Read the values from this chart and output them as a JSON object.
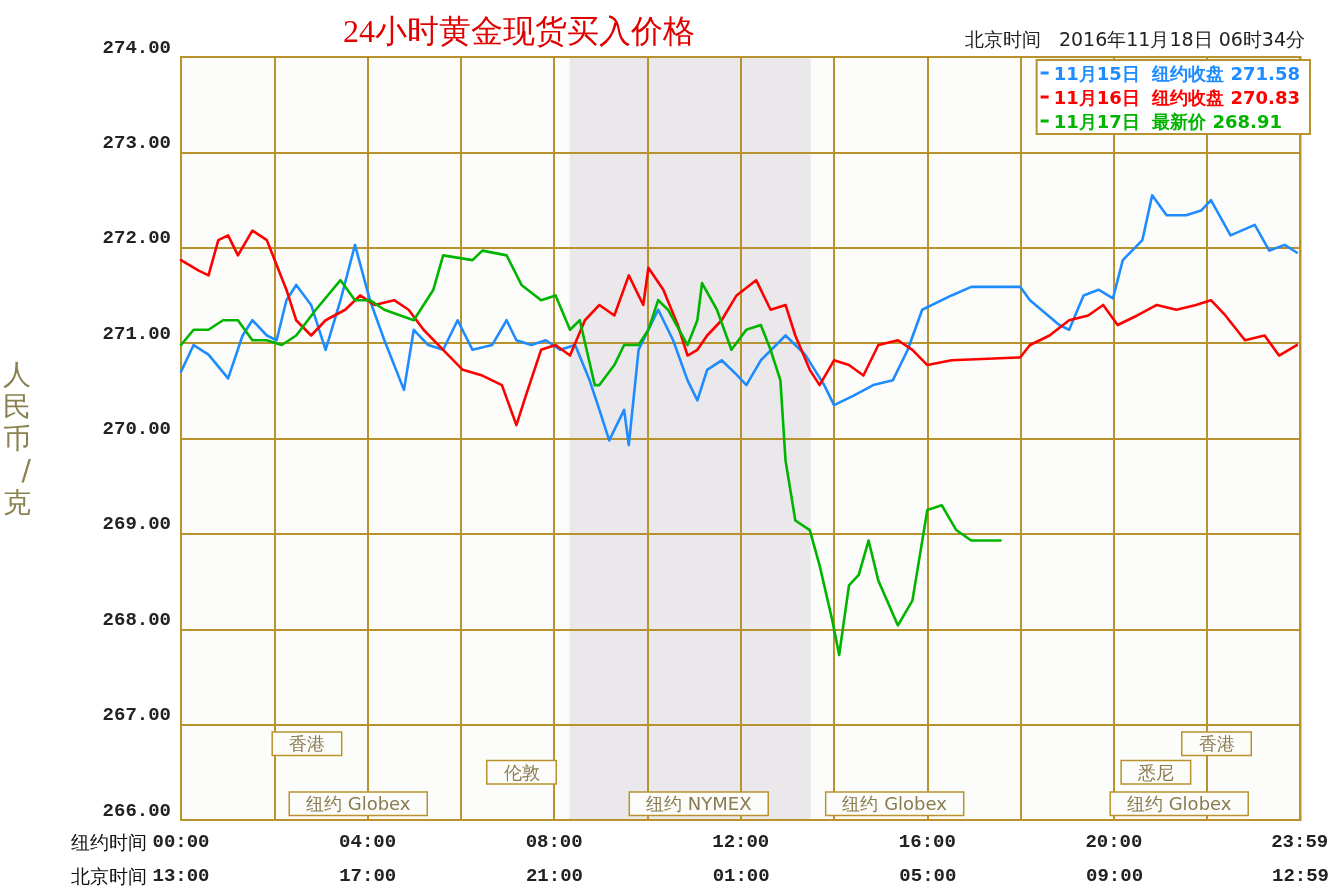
{
  "chart_data": {
    "type": "line",
    "title": "24小时黄金现货买入价格",
    "subtitle": "北京时间   2016年11月18日 06时34分",
    "xlabel": "纽约时间",
    "x2label": "北京时间",
    "ylabel": "人民币/克",
    "xlim": [
      0,
      24
    ],
    "xticks": [
      {
        "value": 0,
        "label": "00:00"
      },
      {
        "value": 2,
        "label": null
      },
      {
        "value": 4,
        "label": "04:00"
      },
      {
        "value": 6,
        "label": null
      },
      {
        "value": 8,
        "label": "08:00"
      },
      {
        "value": 10,
        "label": null
      },
      {
        "value": 12,
        "label": "12:00"
      },
      {
        "value": 14,
        "label": null
      },
      {
        "value": 16,
        "label": "16:00"
      },
      {
        "value": 18,
        "label": null
      },
      {
        "value": 20,
        "label": "20:00"
      },
      {
        "value": 22,
        "label": null
      },
      {
        "value": 23.983,
        "label": "23:59"
      }
    ],
    "x2lim": [
      "2016-11-17T13:00",
      "2016-11-18T12:59"
    ],
    "x2ticks": [
      {
        "value": "2016-11-17T13:00",
        "label": "13:00"
      },
      {
        "value": "2016-11-17T17:00",
        "label": "17:00"
      },
      {
        "value": "2016-11-17T21:00",
        "label": "21:00"
      },
      {
        "value": "2016-11-18T01:00",
        "label": "01:00"
      },
      {
        "value": "2016-11-18T05:00",
        "label": "05:00"
      },
      {
        "value": "2016-11-18T09:00",
        "label": "09:00"
      },
      {
        "value": "2016-11-18T12:59",
        "label": "12:59"
      }
    ],
    "ylim": [
      266,
      274
    ],
    "yticks": [
      {
        "value": 266,
        "label": "266.00"
      },
      {
        "value": 267,
        "label": "267.00"
      },
      {
        "value": 268,
        "label": "268.00"
      },
      {
        "value": 269,
        "label": "269.00"
      },
      {
        "value": 270,
        "label": "270.00"
      },
      {
        "value": 271,
        "label": "271.00"
      },
      {
        "value": 272,
        "label": "272.00"
      },
      {
        "value": 273,
        "label": "273.00"
      },
      {
        "value": 274,
        "label": "274.00"
      }
    ],
    "grid": true,
    "legend": "top right",
    "marker": "none",
    "line_style": "solid",
    "bands": [
      {
        "axis": "x",
        "from": 8.33,
        "to": 13.5,
        "color": "#ebe8ec"
      }
    ],
    "annotations": [
      "香港",
      "伦敦",
      "纽约 Globex",
      "纽约 NYMEX",
      "纽约 Globex",
      "香港",
      "悉尼",
      "纽约 Globex"
    ],
    "series": [
      {
        "name": "11月15日  纽约收盘 271.58",
        "color": "#1e8cff",
        "x": [
          0,
          0.27,
          0.59,
          1.01,
          1.32,
          1.53,
          1.84,
          2.05,
          2.26,
          2.47,
          2.79,
          3.1,
          3.42,
          3.73,
          4.05,
          4.36,
          4.78,
          4.99,
          5.3,
          5.62,
          5.93,
          6.25,
          6.67,
          6.98,
          7.19,
          7.51,
          7.82,
          8.13,
          8.45,
          8.76,
          8.97,
          9.18,
          9.5,
          9.6,
          9.81,
          10.23,
          10.55,
          10.86,
          11.07,
          11.28,
          11.59,
          11.91,
          12.12,
          12.43,
          12.96,
          13.38,
          13.79,
          14,
          14.42,
          14.84,
          15.26,
          15.58,
          15.89,
          16.52,
          16.94,
          17.99,
          18.2,
          18.83,
          19.04,
          19.35,
          19.67,
          19.98,
          20.19,
          20.61,
          20.82,
          21.13,
          21.55,
          21.87,
          22.08,
          22.5,
          23.02,
          23.33,
          23.66,
          23.92
        ],
        "values": [
          270.7,
          270.98,
          270.88,
          270.63,
          271.08,
          271.24,
          271.08,
          271.03,
          271.45,
          271.61,
          271.4,
          270.93,
          271.45,
          272.03,
          271.45,
          271.03,
          270.51,
          271.14,
          270.98,
          270.93,
          271.24,
          270.93,
          270.98,
          271.24,
          271.03,
          270.98,
          271.03,
          270.93,
          270.98,
          270.61,
          270.3,
          269.98,
          270.3,
          269.93,
          270.93,
          271.35,
          271.03,
          270.61,
          270.4,
          270.72,
          270.82,
          270.67,
          270.56,
          270.82,
          271.08,
          270.88,
          270.56,
          270.35,
          270.45,
          270.56,
          270.61,
          270.93,
          271.35,
          271.5,
          271.59,
          271.59,
          271.45,
          271.19,
          271.14,
          271.5,
          271.56,
          271.47,
          271.87,
          272.08,
          272.55,
          272.34,
          272.34,
          272.39,
          272.5,
          272.13,
          272.24,
          271.97,
          272.03,
          271.95
        ]
      },
      {
        "name": "11月16日  纽约收盘 270.83",
        "color": "#ff0000",
        "x": [
          0,
          0.38,
          0.59,
          0.8,
          1.01,
          1.22,
          1.53,
          1.84,
          2.05,
          2.26,
          2.47,
          2.79,
          3.1,
          3.52,
          3.84,
          4.15,
          4.57,
          4.88,
          5.2,
          5.62,
          6.04,
          6.46,
          6.88,
          7.19,
          7.4,
          7.72,
          8.03,
          8.34,
          8.66,
          8.97,
          9.29,
          9.6,
          9.91,
          10.02,
          10.34,
          10.65,
          10.86,
          11.07,
          11.28,
          11.59,
          11.91,
          12.33,
          12.64,
          12.96,
          13.17,
          13.48,
          13.69,
          14,
          14.32,
          14.63,
          14.95,
          15.37,
          15.68,
          16,
          16.52,
          17.99,
          18.2,
          18.62,
          19.04,
          19.45,
          19.77,
          20.08,
          20.5,
          20.92,
          21.34,
          21.76,
          22.08,
          22.39,
          22.81,
          23.23,
          23.54,
          23.92
        ],
        "values": [
          271.87,
          271.76,
          271.71,
          272.08,
          272.13,
          271.92,
          272.18,
          272.08,
          271.82,
          271.56,
          271.24,
          271.08,
          271.24,
          271.35,
          271.5,
          271.4,
          271.45,
          271.35,
          271.14,
          270.93,
          270.72,
          270.66,
          270.56,
          270.14,
          270.46,
          270.93,
          270.98,
          270.87,
          271.24,
          271.4,
          271.29,
          271.71,
          271.4,
          271.79,
          271.56,
          271.19,
          270.87,
          270.93,
          271.08,
          271.24,
          271.5,
          271.66,
          271.35,
          271.4,
          271.08,
          270.72,
          270.56,
          270.82,
          270.77,
          270.66,
          270.98,
          271.03,
          270.93,
          270.77,
          270.82,
          270.85,
          270.98,
          271.08,
          271.24,
          271.29,
          271.4,
          271.19,
          271.29,
          271.4,
          271.35,
          271.4,
          271.45,
          271.29,
          271.03,
          271.08,
          270.87,
          270.98
        ]
      },
      {
        "name": "11月17日  最新价 268.91",
        "color": "#00b400",
        "x": [
          0,
          0.27,
          0.59,
          0.9,
          1.22,
          1.53,
          1.84,
          2.16,
          2.47,
          2.89,
          3.42,
          3.73,
          4.05,
          4.36,
          4.99,
          5.41,
          5.62,
          6.25,
          6.46,
          6.98,
          7.3,
          7.72,
          8.03,
          8.34,
          8.55,
          8.87,
          8.97,
          9.29,
          9.5,
          9.81,
          10.02,
          10.23,
          10.44,
          10.86,
          11.07,
          11.17,
          11.49,
          11.8,
          12.12,
          12.43,
          12.64,
          12.85,
          12.96,
          13.17,
          13.48,
          13.69,
          13.96,
          14.11,
          14.32,
          14.53,
          14.74,
          14.95,
          15.37,
          15.68,
          16,
          16.31,
          16.62,
          16.94,
          17.57
        ],
        "values": [
          270.98,
          271.14,
          271.14,
          271.24,
          271.24,
          271.03,
          271.03,
          270.98,
          271.08,
          271.35,
          271.66,
          271.45,
          271.45,
          271.35,
          271.24,
          271.56,
          271.92,
          271.87,
          271.97,
          271.92,
          271.61,
          271.45,
          271.5,
          271.14,
          271.24,
          270.56,
          270.56,
          270.77,
          270.98,
          270.98,
          271.14,
          271.45,
          271.35,
          270.98,
          271.24,
          271.63,
          271.35,
          270.93,
          271.14,
          271.19,
          270.93,
          270.61,
          269.77,
          269.14,
          269.04,
          268.67,
          268.1,
          267.73,
          268.46,
          268.57,
          268.93,
          268.51,
          268.04,
          268.3,
          269.25,
          269.3,
          269.04,
          268.93,
          268.93
        ]
      }
    ]
  }
}
